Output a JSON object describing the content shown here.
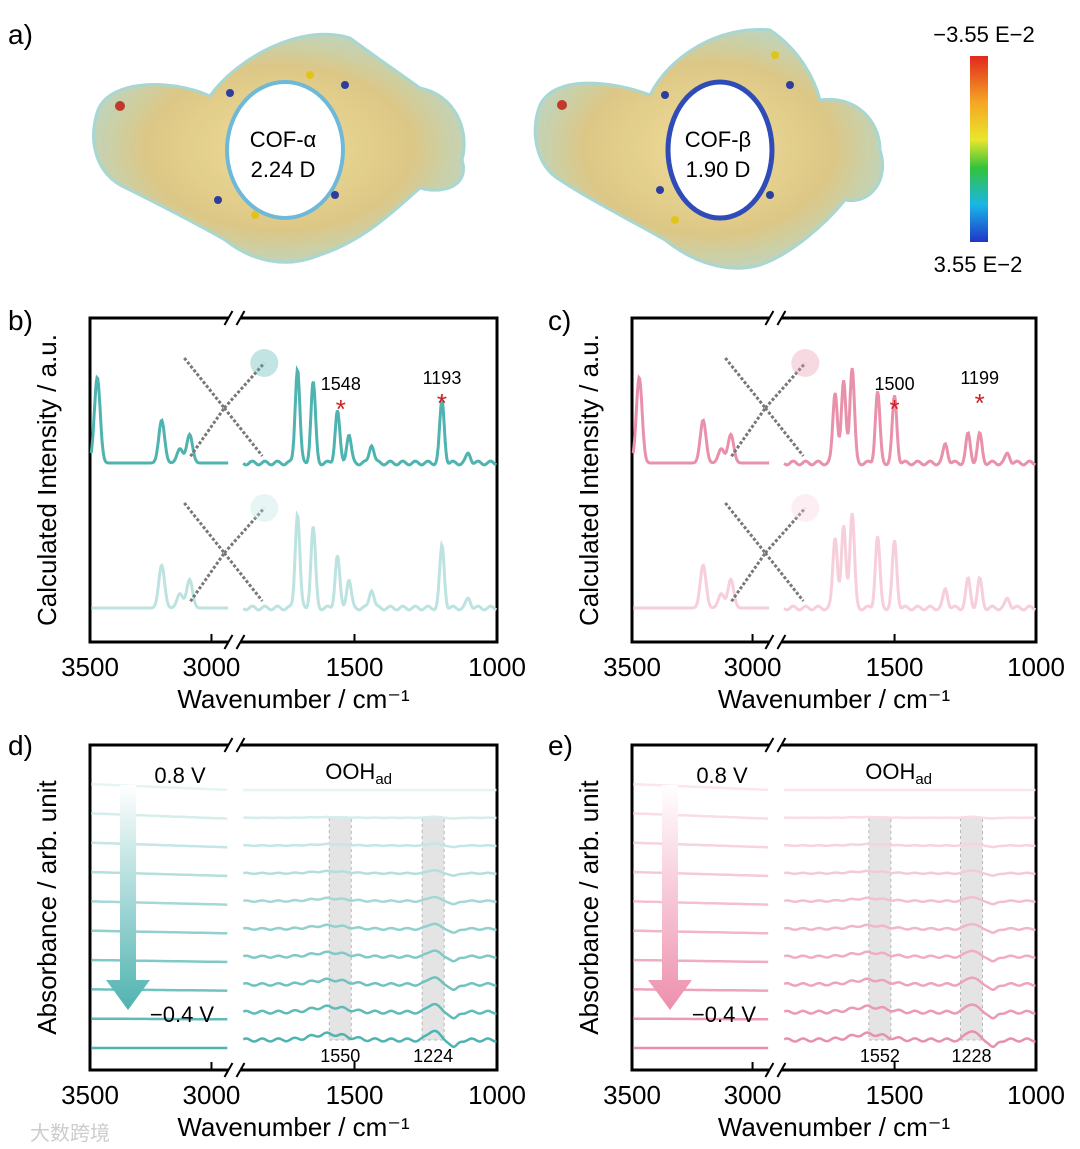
{
  "colors": {
    "teal": "#4fb3b0",
    "teal_light": "#bde3e1",
    "pink": "#e991ab",
    "pink_light": "#f6cfdb",
    "star": "#d21f1f",
    "band": "#d9d9d9"
  },
  "panel_a": {
    "label": "a)",
    "molecules": [
      {
        "name": "COF-α",
        "dipole": "2.24 D"
      },
      {
        "name": "COF-β",
        "dipole": "1.90 D"
      }
    ],
    "colorbar": {
      "top_label": "−3.55 E−2",
      "bottom_label": "3.55 E−2"
    }
  },
  "chart_data": [
    {
      "type": "line",
      "panel": "b)",
      "xlabel": "Wavenumber / cm⁻¹",
      "ylabel": "Calculated Intensity / a.u.",
      "x_ticks_left": [
        3500,
        3000
      ],
      "x_ticks_right": [
        1500,
        1000
      ],
      "xlim_left": [
        3500,
        2930
      ],
      "xlim_right": [
        1900,
        1000
      ],
      "axis_break": true,
      "annotations": [
        {
          "label": "1548",
          "x": 1548
        },
        {
          "label": "1193",
          "x": 1193
        }
      ],
      "series": [
        {
          "name": "upper",
          "color": "teal",
          "peaks": [
            [
              3470,
              0.9
            ],
            [
              3205,
              0.45
            ],
            [
              3130,
              0.15
            ],
            [
              3090,
              0.3
            ]
          ],
          "peaks_right": [
            [
              1700,
              1.0
            ],
            [
              1645,
              0.85
            ],
            [
              1560,
              0.55
            ],
            [
              1520,
              0.3
            ],
            [
              1440,
              0.2
            ],
            [
              1193,
              0.65
            ],
            [
              1100,
              0.1
            ]
          ]
        },
        {
          "name": "lower",
          "color": "teal_light",
          "peaks": [
            [
              3205,
              0.45
            ],
            [
              3130,
              0.15
            ],
            [
              3090,
              0.3
            ]
          ],
          "peaks_right": [
            [
              1700,
              1.0
            ],
            [
              1645,
              0.85
            ],
            [
              1560,
              0.55
            ],
            [
              1520,
              0.3
            ],
            [
              1440,
              0.2
            ],
            [
              1193,
              0.65
            ],
            [
              1100,
              0.1
            ]
          ]
        }
      ]
    },
    {
      "type": "line",
      "panel": "c)",
      "xlabel": "Wavenumber / cm⁻¹",
      "ylabel": "Calculated Intensity / a.u.",
      "x_ticks_left": [
        3500,
        3000
      ],
      "x_ticks_right": [
        1500,
        1000
      ],
      "xlim_left": [
        3500,
        2930
      ],
      "xlim_right": [
        1900,
        1000
      ],
      "axis_break": true,
      "annotations": [
        {
          "label": "1500",
          "x": 1500
        },
        {
          "label": "1199",
          "x": 1199
        }
      ],
      "series": [
        {
          "name": "upper",
          "color": "pink",
          "peaks": [
            [
              3470,
              0.9
            ],
            [
              3205,
              0.45
            ],
            [
              3130,
              0.15
            ],
            [
              3090,
              0.3
            ]
          ],
          "peaks_right": [
            [
              1710,
              0.75
            ],
            [
              1680,
              0.85
            ],
            [
              1650,
              1.0
            ],
            [
              1560,
              0.75
            ],
            [
              1500,
              0.7
            ],
            [
              1320,
              0.2
            ],
            [
              1240,
              0.3
            ],
            [
              1199,
              0.3
            ],
            [
              1100,
              0.1
            ]
          ]
        },
        {
          "name": "lower",
          "color": "pink_light",
          "peaks": [
            [
              3205,
              0.45
            ],
            [
              3130,
              0.15
            ],
            [
              3090,
              0.3
            ]
          ],
          "peaks_right": [
            [
              1710,
              0.75
            ],
            [
              1680,
              0.85
            ],
            [
              1650,
              1.0
            ],
            [
              1560,
              0.75
            ],
            [
              1500,
              0.7
            ],
            [
              1320,
              0.2
            ],
            [
              1240,
              0.3
            ],
            [
              1199,
              0.3
            ],
            [
              1100,
              0.1
            ]
          ]
        }
      ]
    },
    {
      "type": "line",
      "panel": "d)",
      "xlabel": "Wavenumber / cm⁻¹",
      "ylabel": "Absorbance / arb. unit",
      "x_ticks_left": [
        3500,
        3000
      ],
      "x_ticks_right": [
        1500,
        1000
      ],
      "xlim_left": [
        3500,
        2930
      ],
      "xlim_right": [
        1900,
        1000
      ],
      "axis_break": true,
      "species_label": "OOH",
      "species_sub": "ad",
      "potential_start": "0.8 V",
      "potential_end": "−0.4 V",
      "bands": [
        {
          "label": "1550",
          "x": 1550
        },
        {
          "label": "1224",
          "x": 1224
        }
      ],
      "n_spectra": 10,
      "color_start": "#e6f5f4",
      "color_end": "#4fb3b0"
    },
    {
      "type": "line",
      "panel": "e)",
      "xlabel": "Wavenumber / cm⁻¹",
      "ylabel": "Absorbance / arb. unit",
      "x_ticks_left": [
        3500,
        3000
      ],
      "x_ticks_right": [
        1500,
        1000
      ],
      "xlim_left": [
        3500,
        2930
      ],
      "xlim_right": [
        1900,
        1000
      ],
      "axis_break": true,
      "species_label": "OOH",
      "species_sub": "ad",
      "potential_start": "0.8 V",
      "potential_end": "−0.4 V",
      "bands": [
        {
          "label": "1552",
          "x": 1552
        },
        {
          "label": "1228",
          "x": 1228
        }
      ],
      "n_spectra": 10,
      "color_start": "#fbe6ed",
      "color_end": "#e991ab"
    }
  ],
  "watermark": "大数跨境"
}
